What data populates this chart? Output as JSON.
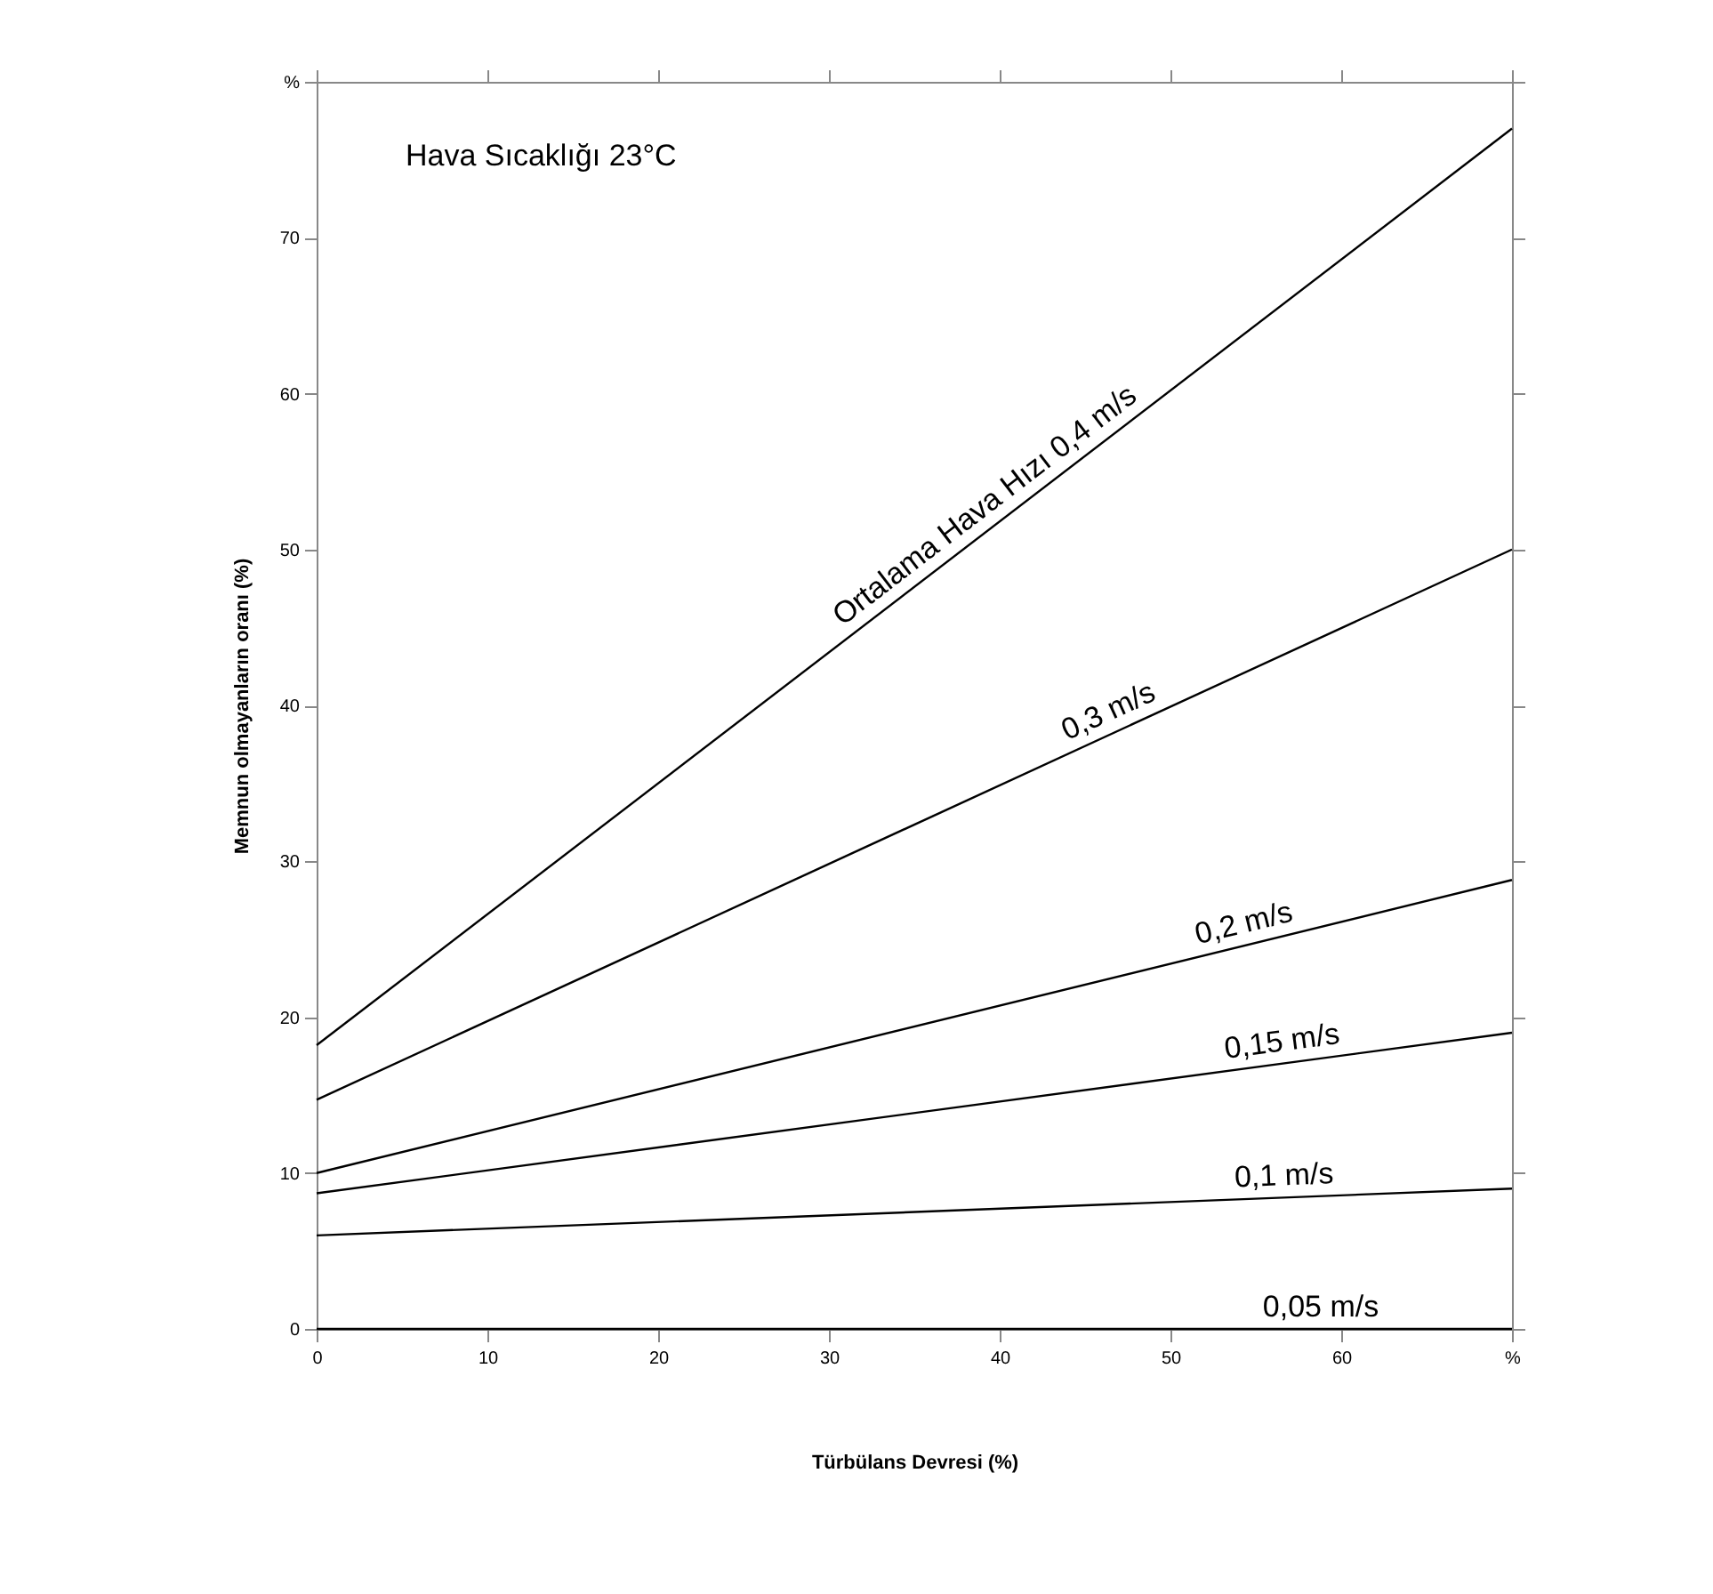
{
  "chart_data": {
    "type": "line",
    "xlabel": "Türbülans Devresi (%)",
    "ylabel": "Memnun olmayanların oranı (%)",
    "annotations": [
      "Hava Sıcaklığı 23°C"
    ],
    "x": [
      0,
      70
    ],
    "series": [
      {
        "name": "Ortalama Hava Hızı 0,4 m/s",
        "color": "#000000",
        "values": [
          18.2,
          77
        ]
      },
      {
        "name": "0,3 m/s",
        "color": "#000000",
        "values": [
          14.7,
          50
        ]
      },
      {
        "name": "0,2 m/s",
        "color": "#000000",
        "values": [
          10,
          28.8
        ]
      },
      {
        "name": "0,15 m/s",
        "color": "#000000",
        "values": [
          8.7,
          19
        ]
      },
      {
        "name": "0,1 m/s",
        "color": "#000000",
        "values": [
          6,
          9
        ]
      },
      {
        "name": "0,05 m/s",
        "color": "#000000",
        "values": [
          0,
          0
        ]
      }
    ],
    "xlim": [
      0,
      70
    ],
    "ylim": [
      0,
      80
    ],
    "xticks": [
      0,
      10,
      20,
      30,
      40,
      50,
      60,
      {
        "value": 70,
        "label": "%"
      }
    ],
    "yticks": [
      0,
      10,
      20,
      30,
      40,
      50,
      60,
      70,
      {
        "value": 80,
        "label": "%"
      }
    ],
    "grid": false,
    "legend": false,
    "marker": "none",
    "line_style": "solid"
  }
}
